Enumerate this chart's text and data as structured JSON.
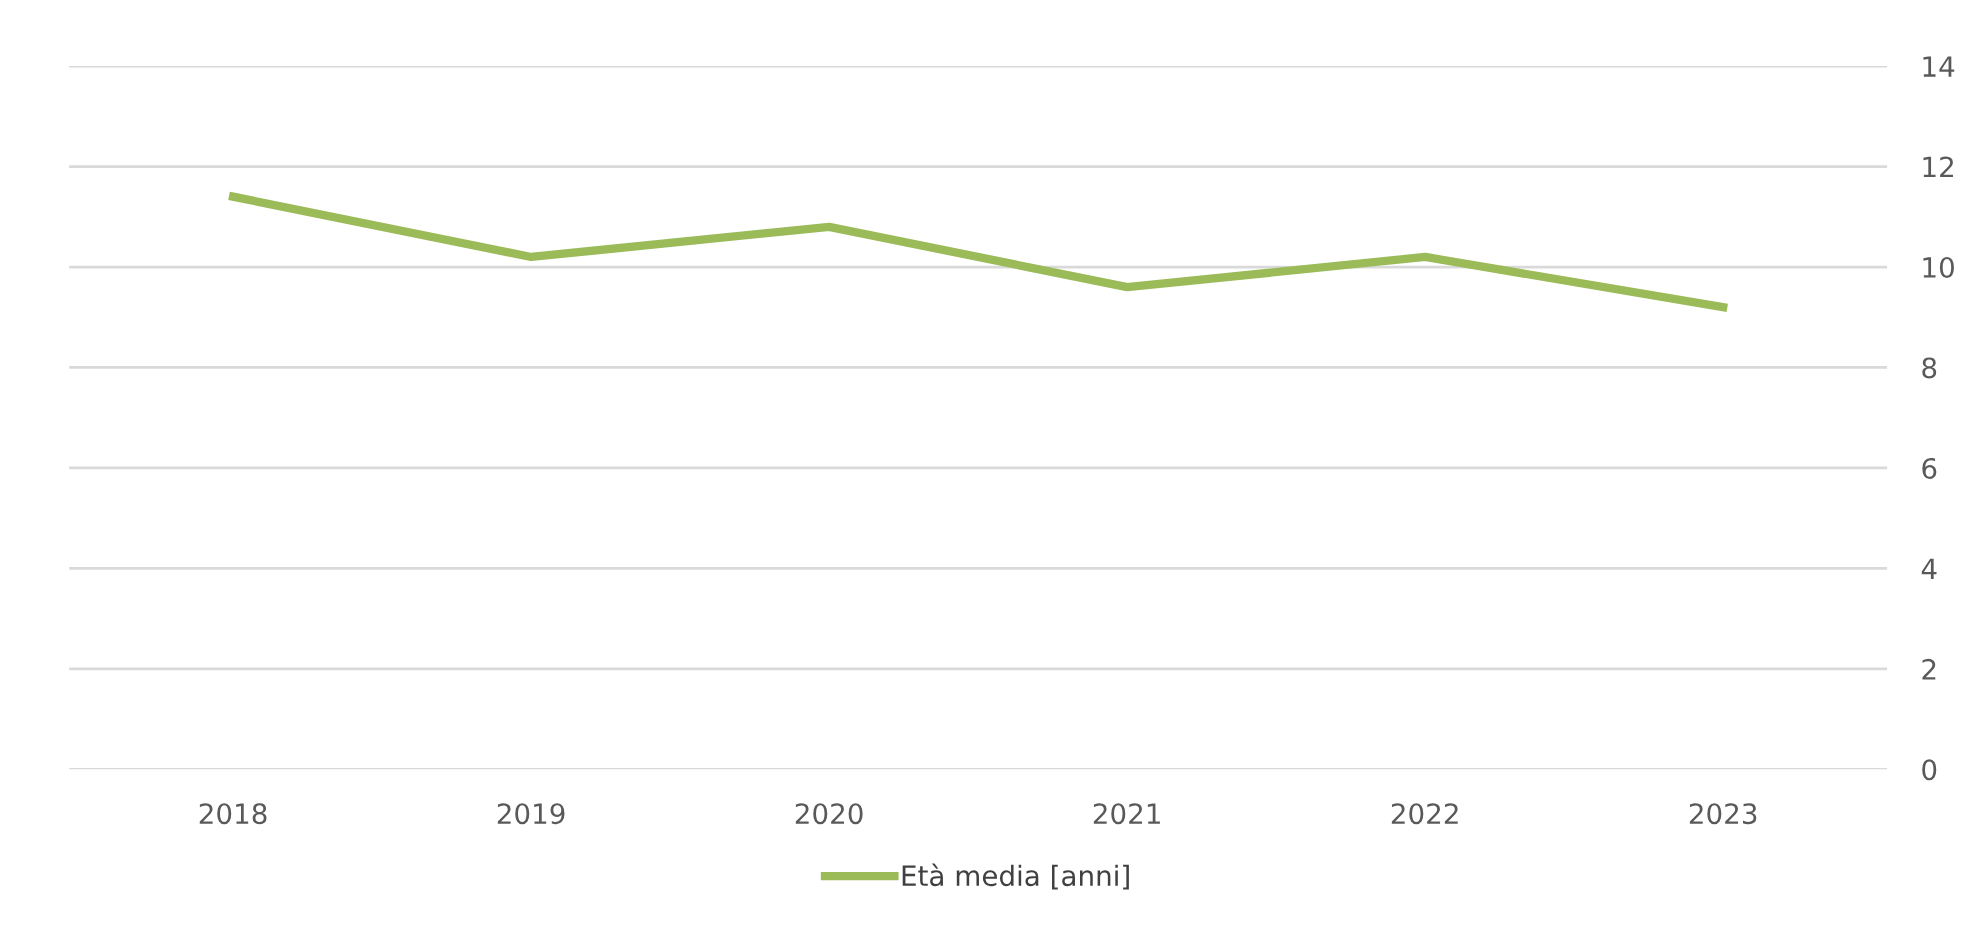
{
  "chart_data": {
    "type": "line",
    "categories": [
      "2018",
      "2019",
      "2020",
      "2021",
      "2022",
      "2023"
    ],
    "series": [
      {
        "name": "Età media [anni]",
        "color": "#9bbb59",
        "values": [
          11.4,
          10.2,
          10.8,
          9.6,
          10.2,
          9.2
        ]
      }
    ],
    "ylim": [
      0,
      14
    ],
    "yticks": [
      0,
      2,
      4,
      6,
      8,
      10,
      12,
      14
    ],
    "grid": "y",
    "legend": "bottom",
    "marker": "none",
    "line_style": "solid"
  }
}
